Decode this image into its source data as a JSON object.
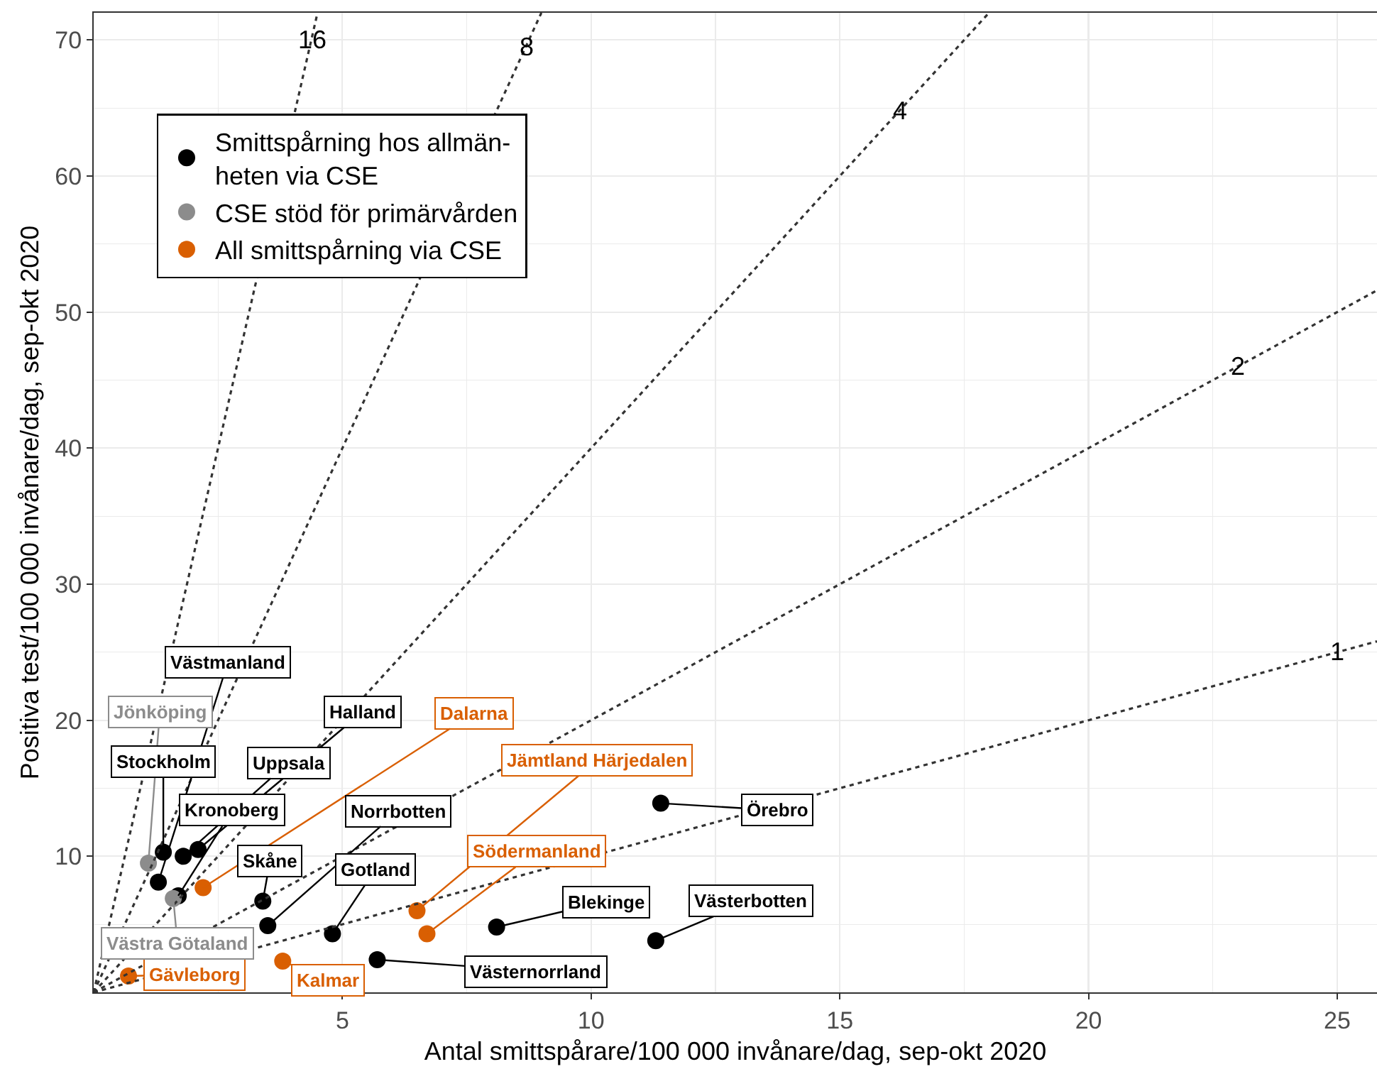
{
  "chart_data": {
    "type": "scatter",
    "xlabel": "Antal smittspårare/100 000 invånare/dag, sep-okt 2020",
    "ylabel": "Positiva test/100 000 invånare/dag, sep-okt 2020",
    "xlim": [
      0,
      25.8
    ],
    "ylim": [
      0,
      72
    ],
    "xticks": [
      5,
      10,
      15,
      20,
      25
    ],
    "yticks": [
      10,
      20,
      30,
      40,
      50,
      60,
      70
    ],
    "grid": true,
    "legend": "top left",
    "marker": "circle",
    "line_style": "dotted",
    "series": [
      {
        "name": "Smittspårning hos allmän-\nheten via CSE",
        "color": "#000000",
        "x": [
          1.4,
          1.8,
          2.1,
          1.3,
          1.7,
          3.4,
          3.5,
          4.8,
          5.7,
          8.1,
          11.3,
          11.4
        ],
        "values": [
          10.3,
          10.0,
          10.5,
          8.1,
          7.1,
          6.7,
          4.9,
          4.3,
          2.4,
          4.8,
          3.8,
          13.9
        ],
        "value_labels": [
          "Stockholm",
          "Uppsala",
          "Halland",
          "Västmanland",
          "Kronoberg",
          "Skåne",
          "Norrbotten",
          "Gotland",
          "Västernorrland",
          "Blekinge",
          "Västerbotten",
          "Örebro"
        ]
      },
      {
        "name": "CSE stöd för primärvården",
        "color": "#8c8c8c",
        "x": [
          1.1,
          1.6
        ],
        "values": [
          9.5,
          6.9
        ],
        "value_labels": [
          "Jönköping",
          "Västra Götaland"
        ]
      },
      {
        "name": "All smittspårning via CSE",
        "color": "#d95f02",
        "x": [
          2.2,
          6.5,
          6.7,
          3.8,
          0.7
        ],
        "values": [
          7.7,
          6.0,
          4.3,
          2.3,
          1.2
        ],
        "value_labels": [
          "Dalarna",
          "Jämtland Härjedalen",
          "Södermanland",
          "Kalmar",
          "Gävleborg"
        ]
      },
      {
        "type": "line",
        "marker": "none",
        "color": "#333333",
        "x": [
          0,
          4.5
        ],
        "values": [
          0,
          72
        ]
      },
      {
        "type": "line",
        "marker": "none",
        "color": "#333333",
        "x": [
          0,
          9
        ],
        "values": [
          0,
          72
        ]
      },
      {
        "type": "line",
        "marker": "none",
        "color": "#333333",
        "x": [
          0,
          18
        ],
        "values": [
          0,
          72
        ]
      },
      {
        "type": "line",
        "marker": "none",
        "color": "#333333",
        "x": [
          0,
          25.8
        ],
        "values": [
          0,
          51.6
        ]
      },
      {
        "type": "line",
        "marker": "none",
        "color": "#333333",
        "x": [
          0,
          25.8
        ],
        "values": [
          0,
          25.8
        ]
      }
    ],
    "annotations": [
      {
        "text": "16",
        "x": 4.4,
        "y": 70
      },
      {
        "text": "8",
        "x": 8.7,
        "y": 69.5
      },
      {
        "text": "4",
        "x": 16.2,
        "y": 64.8
      },
      {
        "text": "2",
        "x": 23,
        "y": 46
      },
      {
        "text": "1",
        "x": 25,
        "y": 25
      }
    ]
  }
}
